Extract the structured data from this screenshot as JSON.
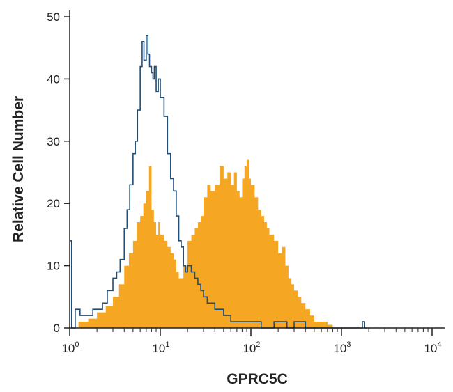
{
  "chart_data": {
    "type": "histogram",
    "title": "",
    "xlabel": "GPRC5C",
    "ylabel": "Relative Cell Number",
    "x_scale": "log",
    "xlim": [
      1,
      10000
    ],
    "ylim": [
      0,
      50
    ],
    "grid": false,
    "legend": "none",
    "y_ticks": [
      "0",
      "10",
      "20",
      "30",
      "40",
      "50"
    ],
    "x_ticks": [
      {
        "base": "10",
        "exp": "0",
        "value": 1
      },
      {
        "base": "10",
        "exp": "1",
        "value": 10
      },
      {
        "base": "10",
        "exp": "2",
        "value": 100
      },
      {
        "base": "10",
        "exp": "3",
        "value": 1000
      },
      {
        "base": "10",
        "exp": "4",
        "value": 10000
      }
    ],
    "series": [
      {
        "style": "filled",
        "color": "#f5a623",
        "x": [
          1.25,
          1.6,
          2.0,
          2.5,
          3.0,
          3.5,
          4.0,
          4.5,
          5.0,
          5.5,
          6.0,
          6.5,
          7.0,
          7.5,
          8.0,
          8.5,
          9.0,
          9.5,
          10,
          11,
          12,
          13,
          14,
          15,
          16,
          18,
          20,
          22,
          24,
          26,
          28,
          30,
          33,
          36,
          40,
          45,
          50,
          55,
          60,
          65,
          70,
          75,
          80,
          85,
          90,
          95,
          100,
          110,
          120,
          130,
          140,
          150,
          160,
          180,
          200,
          220,
          240,
          260,
          280,
          300,
          330,
          360,
          400,
          450,
          500,
          600,
          700,
          800
        ],
        "values": [
          1,
          1.5,
          2.5,
          3.5,
          5,
          7,
          10,
          12,
          14,
          17,
          18,
          20,
          22,
          26,
          19,
          17,
          15,
          17,
          15,
          14,
          13,
          12,
          11,
          9,
          8,
          10,
          14,
          15,
          16,
          17,
          18,
          21,
          23,
          22,
          23,
          26,
          24,
          25,
          23,
          25,
          22,
          21,
          24,
          26,
          27,
          24,
          23,
          21,
          19,
          18,
          17,
          16,
          15,
          14,
          12,
          13,
          10,
          8,
          7,
          6,
          5,
          4,
          3,
          2,
          1,
          1,
          0.5,
          0
        ]
      },
      {
        "style": "outline",
        "color": "#1f4e79",
        "x": [
          1.0,
          1.05,
          1.15,
          1.3,
          1.5,
          1.8,
          2.0,
          2.3,
          2.6,
          3.0,
          3.3,
          3.6,
          4.0,
          4.3,
          4.6,
          5.0,
          5.3,
          5.6,
          6.0,
          6.3,
          6.6,
          7.0,
          7.3,
          7.6,
          8.0,
          8.3,
          8.6,
          9.0,
          9.5,
          10,
          11,
          12,
          13,
          14,
          15,
          16,
          17,
          18,
          19,
          20,
          22,
          24,
          26,
          28,
          30,
          33,
          36,
          40,
          45,
          50,
          55,
          60,
          70,
          80,
          90,
          100,
          130,
          160,
          180,
          200,
          250,
          300,
          400,
          500,
          700,
          1000,
          1300,
          1500,
          1700,
          1800
        ],
        "values": [
          14,
          0,
          3,
          2,
          2,
          3,
          3,
          4,
          6,
          8,
          9,
          11,
          16,
          19,
          23,
          28,
          30,
          35,
          42,
          46,
          43,
          47,
          44,
          42,
          41,
          40,
          42,
          38,
          40,
          37,
          34,
          28,
          24,
          22,
          18,
          14,
          13,
          10,
          9,
          10,
          9,
          8,
          7,
          6,
          5,
          4,
          4,
          3,
          3,
          2,
          2,
          1,
          1,
          1,
          1,
          1,
          0,
          0,
          1,
          1,
          0,
          1,
          0,
          0,
          0,
          0,
          0,
          0,
          1,
          0
        ]
      }
    ]
  }
}
